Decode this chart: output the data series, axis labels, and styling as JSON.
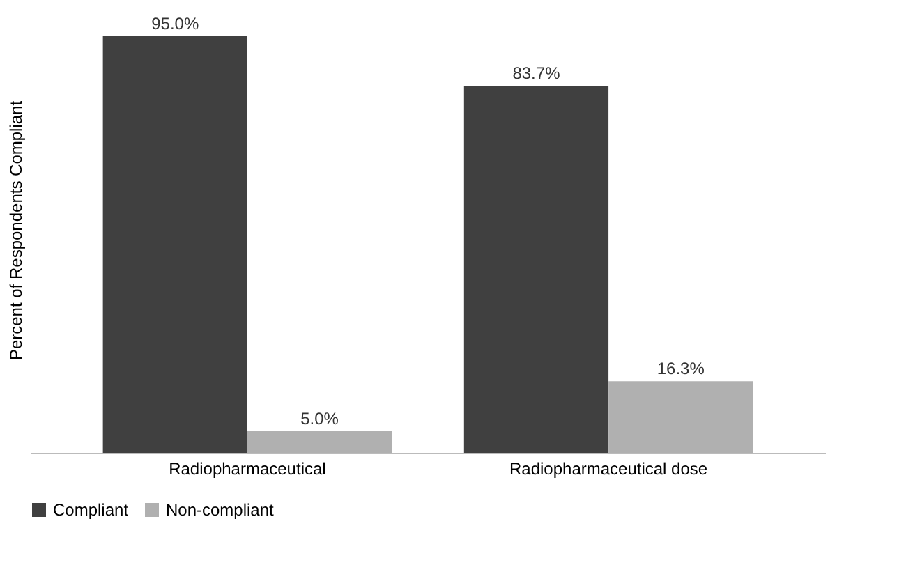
{
  "chart_data": {
    "type": "bar",
    "ylabel": "Percent of Respondents Compliant",
    "categories": [
      "Radiopharmaceutical",
      "Radiopharmaceutical dose"
    ],
    "series": [
      {
        "name": "Compliant",
        "color": "#404040",
        "values": [
          95.0,
          83.7
        ],
        "value_labels": [
          "95.0%",
          "83.7%"
        ]
      },
      {
        "name": "Non-compliant",
        "color": "#b0b0b0",
        "values": [
          5.0,
          16.3
        ],
        "value_labels": [
          "5.0%",
          "16.3%"
        ]
      }
    ],
    "legend": "bottom",
    "grid": false
  }
}
